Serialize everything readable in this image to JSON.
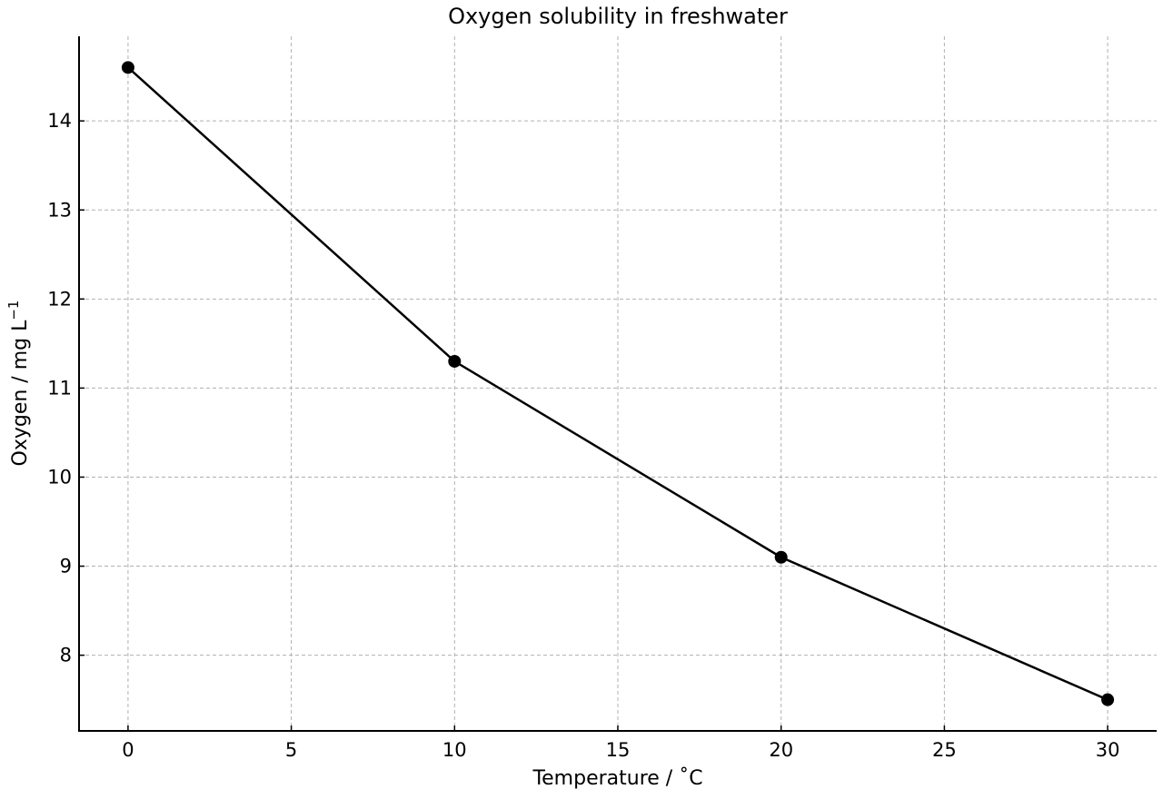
{
  "chart_data": {
    "type": "line",
    "title": "Oxygen solubility in freshwater",
    "xlabel": "Temperature / ˚C",
    "ylabel": {
      "base": "Oxygen / mg L",
      "superscript": "−1"
    },
    "x": [
      0,
      10,
      20,
      30
    ],
    "series": [
      {
        "values": [
          14.6,
          11.3,
          9.1,
          7.5
        ],
        "color": "#000000",
        "marker": "circle"
      }
    ],
    "xlim": [
      -1.5,
      31.5
    ],
    "ylim": [
      7.15,
      14.95
    ],
    "xticks": [
      0,
      5,
      10,
      15,
      20,
      25,
      30
    ],
    "yticks": [
      8,
      9,
      10,
      11,
      12,
      13,
      14
    ],
    "grid": true,
    "grid_color": "#b0b0b0",
    "line_color": "#000000",
    "legend": "none"
  }
}
